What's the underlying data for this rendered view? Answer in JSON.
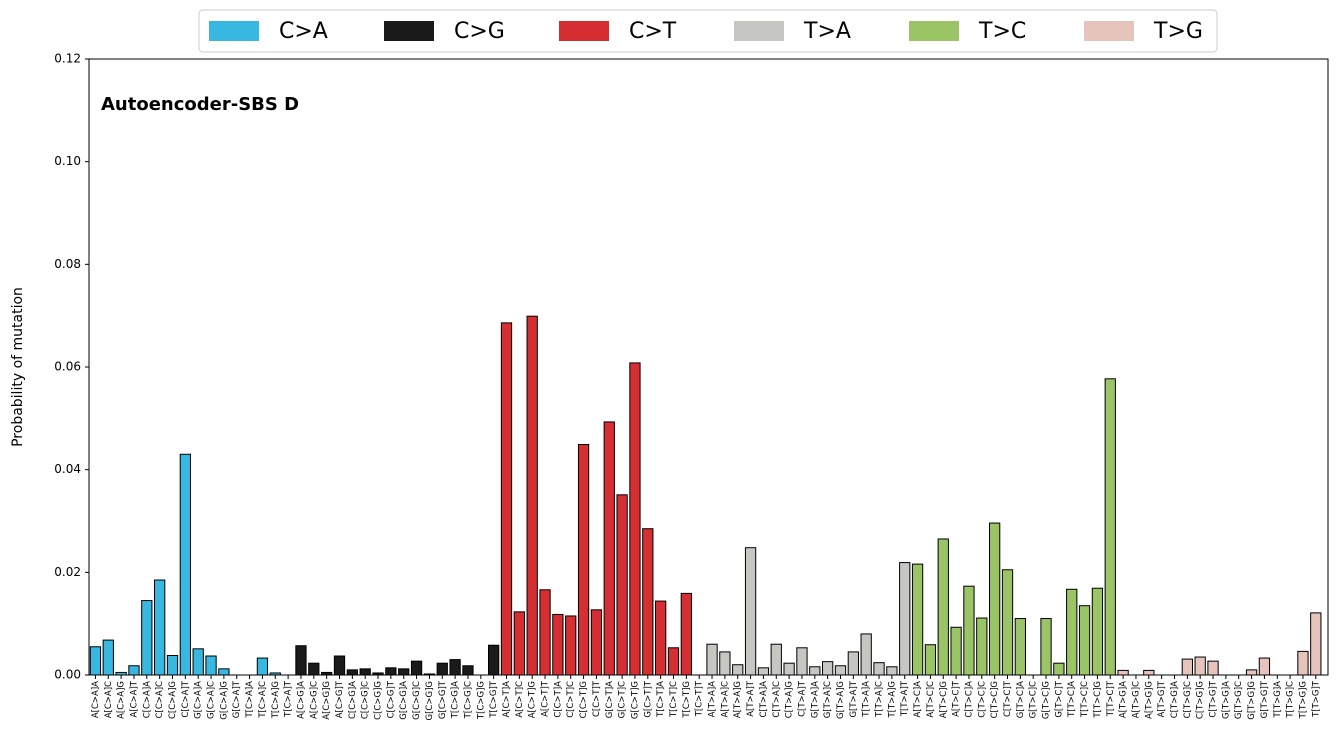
{
  "chart_data": {
    "type": "bar",
    "title": "Autoencoder-SBS D",
    "y_label": "Probability of mutation",
    "ylim": [
      0,
      0.12
    ],
    "yticks": [
      {
        "value": 0,
        "label": "0.00"
      },
      {
        "value": 0.02,
        "label": "0.02"
      },
      {
        "value": 0.04,
        "label": "0.04"
      },
      {
        "value": 0.06,
        "label": "0.06"
      },
      {
        "value": 0.08,
        "label": "0.08"
      },
      {
        "value": 0.1,
        "label": "0.10"
      },
      {
        "value": 0.12,
        "label": "0.12"
      }
    ],
    "series": [
      {
        "name": "C>A",
        "color": "#38b8e0",
        "categories": [
          "A[C>A]A",
          "A[C>A]C",
          "A[C>A]G",
          "A[C>A]T",
          "C[C>A]A",
          "C[C>A]C",
          "C[C>A]G",
          "C[C>A]T",
          "G[C>A]A",
          "G[C>A]C",
          "G[C>A]G",
          "G[C>A]T",
          "T[C>A]A",
          "T[C>A]C",
          "T[C>A]G",
          "T[C>A]T"
        ],
        "values": [
          0.0055,
          0.0068,
          0.0005,
          0.0018,
          0.0145,
          0.0185,
          0.0038,
          0.043,
          0.0051,
          0.0037,
          0.0012,
          0,
          0,
          0.0033,
          0.0004,
          0
        ]
      },
      {
        "name": "C>G",
        "color": "#1a1a1a",
        "categories": [
          "A[C>G]A",
          "A[C>G]C",
          "A[C>G]G",
          "A[C>G]T",
          "C[C>G]A",
          "C[C>G]C",
          "C[C>G]G",
          "C[C>G]T",
          "G[C>G]A",
          "G[C>G]C",
          "G[C>G]G",
          "G[C>G]T",
          "T[C>G]A",
          "T[C>G]C",
          "T[C>G]G",
          "T[C>G]T"
        ],
        "values": [
          0.0057,
          0.0023,
          0.0005,
          0.0037,
          0.001,
          0.0012,
          0.0004,
          0.0014,
          0.0012,
          0.0027,
          0.0002,
          0.0023,
          0.003,
          0.0018,
          0,
          0.0058
        ]
      },
      {
        "name": "C>T",
        "color": "#d62f33",
        "categories": [
          "A[C>T]A",
          "A[C>T]C",
          "A[C>T]G",
          "A[C>T]T",
          "C[C>T]A",
          "C[C>T]C",
          "C[C>T]G",
          "C[C>T]T",
          "G[C>T]A",
          "G[C>T]C",
          "G[C>T]G",
          "G[C>T]T",
          "T[C>T]A",
          "T[C>T]C",
          "T[C>T]G",
          "T[C>T]T"
        ],
        "values": [
          0.0686,
          0.0123,
          0.0699,
          0.0166,
          0.0118,
          0.0115,
          0.0449,
          0.0127,
          0.0493,
          0.0351,
          0.0608,
          0.0285,
          0.0144,
          0.0053,
          0.0159,
          0
        ]
      },
      {
        "name": "T>A",
        "color": "#c6c6c2",
        "categories": [
          "A[T>A]A",
          "A[T>A]C",
          "A[T>A]G",
          "A[T>A]T",
          "C[T>A]A",
          "C[T>A]C",
          "C[T>A]G",
          "C[T>A]T",
          "G[T>A]A",
          "G[T>A]C",
          "G[T>A]G",
          "G[T>A]T",
          "T[T>A]A",
          "T[T>A]C",
          "T[T>A]G",
          "T[T>A]T"
        ],
        "values": [
          0.006,
          0.0045,
          0.002,
          0.0248,
          0.0014,
          0.006,
          0.0023,
          0.0053,
          0.0016,
          0.0026,
          0.0018,
          0.0045,
          0.008,
          0.0024,
          0.0016,
          0.0219
        ]
      },
      {
        "name": "T>C",
        "color": "#9ac465",
        "categories": [
          "A[T>C]A",
          "A[T>C]C",
          "A[T>C]G",
          "A[T>C]T",
          "C[T>C]A",
          "C[T>C]C",
          "C[T>C]G",
          "C[T>C]T",
          "G[T>C]A",
          "G[T>C]C",
          "G[T>C]G",
          "G[T>C]T",
          "T[T>C]A",
          "T[T>C]C",
          "T[T>C]G",
          "T[T>C]T"
        ],
        "values": [
          0.0216,
          0.0059,
          0.0265,
          0.0093,
          0.0173,
          0.0111,
          0.0296,
          0.0205,
          0.011,
          0,
          0.011,
          0.0023,
          0.0167,
          0.0135,
          0.0169,
          0.0577
        ]
      },
      {
        "name": "T>G",
        "color": "#e6c4bc",
        "categories": [
          "A[T>G]A",
          "A[T>G]C",
          "A[T>G]G",
          "A[T>G]T",
          "C[T>G]A",
          "C[T>G]C",
          "C[T>G]G",
          "C[T>G]T",
          "G[T>G]A",
          "G[T>G]C",
          "G[T>G]G",
          "G[T>G]T",
          "T[T>G]A",
          "T[T>G]C",
          "T[T>G]G",
          "T[T>G]T"
        ],
        "values": [
          0.0009,
          0,
          0.0009,
          0,
          0,
          0.0031,
          0.0035,
          0.0027,
          0,
          0,
          0.001,
          0.0033,
          0,
          0,
          0.0046,
          0.0121
        ]
      }
    ]
  }
}
